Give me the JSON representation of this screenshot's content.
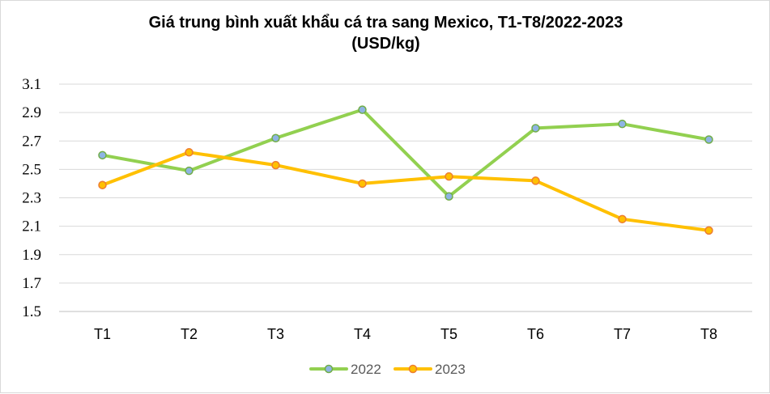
{
  "chart_data": {
    "type": "line",
    "title": "Giá trung bình xuất khẩu cá tra sang Mexico, T1-T8/2022-2023",
    "subtitle": "(USD/kg)",
    "xlabel": "",
    "ylabel": "",
    "categories": [
      "T1",
      "T2",
      "T3",
      "T4",
      "T5",
      "T6",
      "T7",
      "T8"
    ],
    "ylim": [
      1.5,
      3.1
    ],
    "yticks": [
      "3.1",
      "2.9",
      "2.7",
      "2.5",
      "2.3",
      "2.1",
      "1.9",
      "1.7",
      "1.5"
    ],
    "grid": true,
    "legend_position": "bottom",
    "series": [
      {
        "name": "2022",
        "color": "#92d050",
        "marker_fill": "#8eb4e3",
        "marker_stroke": "#70ad47",
        "values": [
          2.6,
          2.49,
          2.72,
          2.92,
          2.31,
          2.79,
          2.82,
          2.71
        ]
      },
      {
        "name": "2023",
        "color": "#ffc000",
        "marker_fill": "#ffc000",
        "marker_stroke": "#ed7d31",
        "values": [
          2.39,
          2.62,
          2.53,
          2.4,
          2.45,
          2.42,
          2.15,
          2.07
        ]
      }
    ]
  }
}
